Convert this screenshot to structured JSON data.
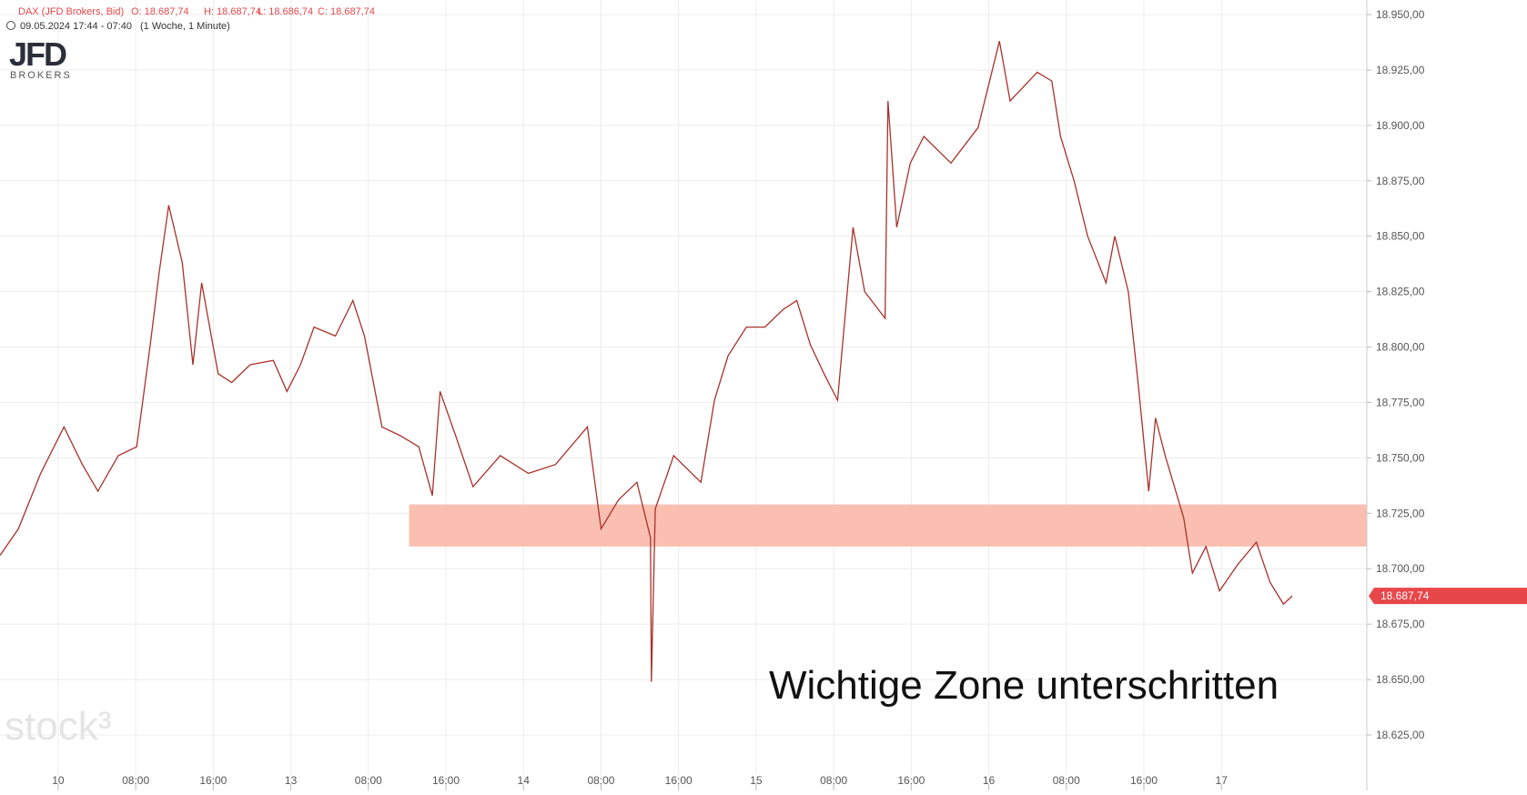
{
  "header": {
    "symbol": "DAX (JFD Brokers, Bid)",
    "open": "O: 18.687,74",
    "high": "H: 18.687,74",
    "low": "L: 18.686,74",
    "close": "C: 18.687,74",
    "period": "09.05.2024 17:44 - 07:40",
    "interval": "(1 Woche, 1 Minute)"
  },
  "brand": {
    "logo": "JFD",
    "logo_sub": "BROKERS",
    "watermark": "stock³"
  },
  "chart_data": {
    "type": "line",
    "color": "#a8322b",
    "grid": true,
    "x": [
      -6,
      -4.1,
      -1.8,
      0.6,
      2.5,
      4.1,
      6.2,
      8.1,
      9.5,
      10.4,
      11.4,
      12.8,
      13.9,
      14.8,
      16.5,
      17.9,
      19.8,
      22.2,
      23.6,
      25,
      26.4,
      28.6,
      30.4,
      31.6,
      33.4,
      35.3,
      37.2,
      38.6,
      39.4,
      41,
      42.8,
      45.6,
      48.5,
      51.3,
      54.6,
      56,
      57.8,
      59.7,
      61.1,
      61.2,
      61.6,
      63.5,
      66.3,
      67.7,
      69.1,
      71,
      72.9,
      74.8,
      76.2,
      77.6,
      79,
      80.4,
      82,
      83.2,
      85.3,
      85.6,
      86.5,
      87.9,
      89.3,
      92.1,
      94.9,
      97.1,
      98.2,
      101,
      102.5,
      103.4,
      104.8,
      106.2,
      108.1,
      109,
      110.4,
      111.4,
      112.5,
      113.2,
      114.2,
      116.1,
      117,
      118.4,
      119.8,
      121.7,
      123.6,
      125,
      126.4,
      127.3
    ],
    "values": [
      18706,
      18718,
      18743,
      18764,
      18747,
      18735,
      18751,
      18755,
      18801,
      18833,
      18864,
      18838,
      18792,
      18829,
      18788,
      18784,
      18792,
      18794,
      18780,
      18792,
      18809,
      18805,
      18821,
      18805,
      18764,
      18760,
      18755,
      18733,
      18780,
      18760,
      18737,
      18751,
      18743,
      18747,
      18764,
      18718,
      18731,
      18739,
      18714,
      18649,
      18727,
      18751,
      18739,
      18776,
      18796,
      18809,
      18809,
      18817,
      18821,
      18801,
      18788,
      18776,
      18854,
      18825,
      18813,
      18911,
      18854,
      18883,
      18895,
      18883,
      18899,
      18938,
      18911,
      18924,
      18920,
      18895,
      18875,
      18850,
      18829,
      18850,
      18825,
      18784,
      18735,
      18768,
      18751,
      18723,
      18698,
      18710,
      18690,
      18702,
      18712,
      18694,
      18684,
      18687.74
    ],
    "xlim": [
      -6,
      135
    ],
    "xticks": [
      {
        "value": 0,
        "label": "10"
      },
      {
        "value": 8,
        "label": "08:00"
      },
      {
        "value": 16,
        "label": "16:00"
      },
      {
        "value": 24,
        "label": "13"
      },
      {
        "value": 32,
        "label": "08:00"
      },
      {
        "value": 40,
        "label": "16:00"
      },
      {
        "value": 48,
        "label": "14"
      },
      {
        "value": 56,
        "label": "08:00"
      },
      {
        "value": 64,
        "label": "16:00"
      },
      {
        "value": 72,
        "label": "15"
      },
      {
        "value": 80,
        "label": "08:00"
      },
      {
        "value": 88,
        "label": "16:00"
      },
      {
        "value": 96,
        "label": "16"
      },
      {
        "value": 104,
        "label": "08:00"
      },
      {
        "value": 112,
        "label": "16:00"
      },
      {
        "value": 120,
        "label": "17"
      }
    ],
    "ylim": [
      18625,
      18950
    ],
    "yticks": [
      {
        "value": 18625,
        "label": "18.625,00"
      },
      {
        "value": 18650,
        "label": "18.650,00"
      },
      {
        "value": 18675,
        "label": "18.675,00"
      },
      {
        "value": 18700,
        "label": "18.700,00"
      },
      {
        "value": 18725,
        "label": "18.725,00"
      },
      {
        "value": 18750,
        "label": "18.750,00"
      },
      {
        "value": 18775,
        "label": "18.775,00"
      },
      {
        "value": 18800,
        "label": "18.800,00"
      },
      {
        "value": 18825,
        "label": "18.825,00"
      },
      {
        "value": 18850,
        "label": "18.850,00"
      },
      {
        "value": 18875,
        "label": "18.875,00"
      },
      {
        "value": 18900,
        "label": "18.900,00"
      },
      {
        "value": 18925,
        "label": "18.925,00"
      },
      {
        "value": 18950,
        "label": "18.950,00"
      }
    ],
    "zone": {
      "xmin": 36.2,
      "ymin": 18710,
      "ymax": 18729,
      "color": "#fbb8aa"
    },
    "last_price": {
      "value": 18687.74,
      "label": "18.687,74",
      "color": "#e8474a"
    },
    "annotation": "Wichtige Zone unterschritten"
  }
}
